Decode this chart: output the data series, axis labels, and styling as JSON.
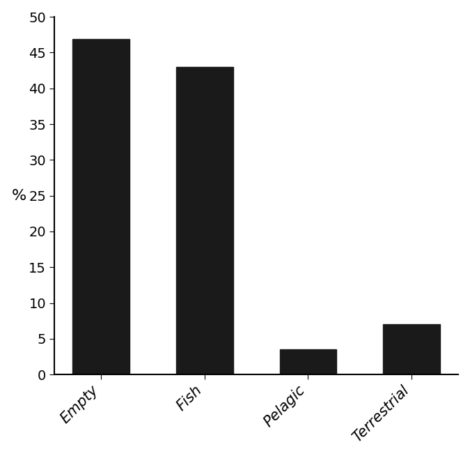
{
  "categories": [
    "Empty",
    "Fish",
    "Pelagic",
    "Terrestrial"
  ],
  "values": [
    46.9,
    43.0,
    3.5,
    7.0
  ],
  "bar_color": "#1a1a1a",
  "ylabel": "%",
  "ylim": [
    0,
    50
  ],
  "yticks": [
    0,
    5,
    10,
    15,
    20,
    25,
    30,
    35,
    40,
    45,
    50
  ],
  "ylabel_fontsize": 16,
  "tick_fontsize": 14,
  "xlabel_fontsize": 15,
  "bar_width": 0.55,
  "background_color": "#ffffff",
  "spine_color": "#000000"
}
